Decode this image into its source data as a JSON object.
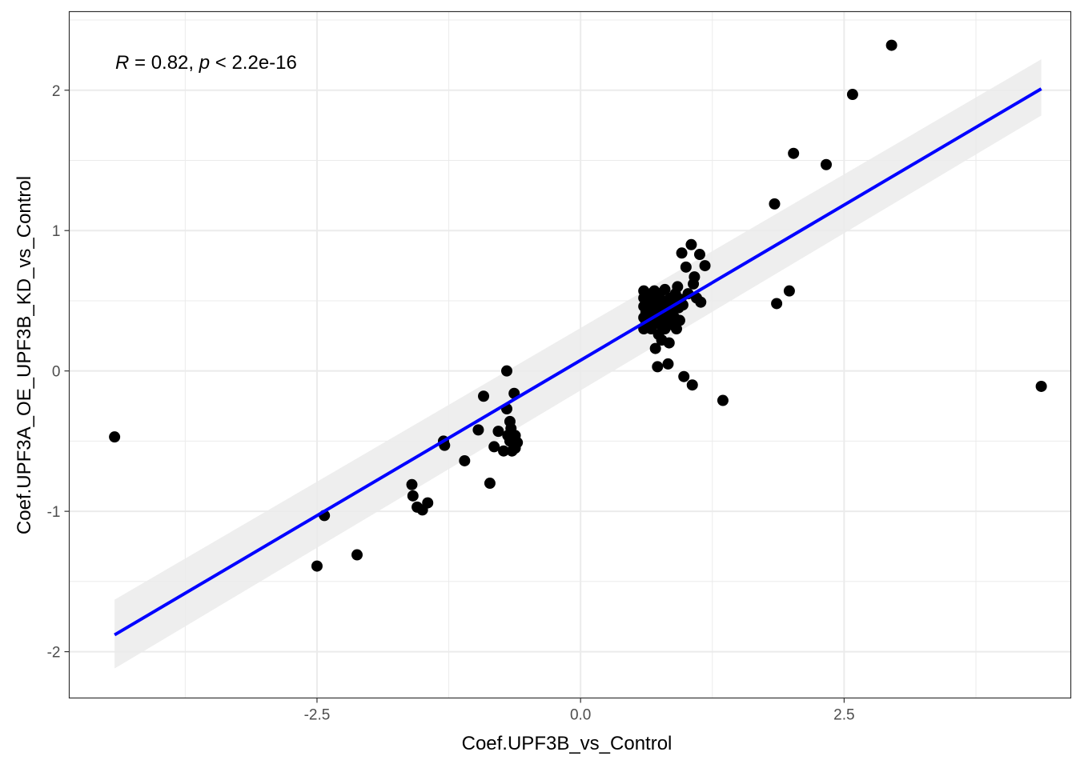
{
  "chart_data": {
    "type": "scatter",
    "title": "",
    "xlabel": "Coef.UPF3B_vs_Control",
    "ylabel": "Coef.UPF3A_OE_UPF3B_KD_vs_Control",
    "xlim": [
      -4.85,
      4.65
    ],
    "ylim": [
      -2.33,
      2.56
    ],
    "x_ticks": [
      -2.5,
      0.0,
      2.5
    ],
    "x_tick_labels": [
      "-2.5",
      "0.0",
      "2.5"
    ],
    "y_ticks": [
      -2,
      -1,
      0,
      1,
      2
    ],
    "y_tick_labels": [
      "-2",
      "-1",
      "0",
      "1",
      "2"
    ],
    "grid": true,
    "annotation": {
      "r_symbol": "R",
      "r_text": " = 0.82, ",
      "p_symbol": "p",
      "p_text": " < 2.2e-16"
    },
    "regression": {
      "x": [
        -4.42,
        4.37
      ],
      "y": [
        -1.88,
        2.01
      ],
      "ci_lower": [
        -2.12,
        1.82
      ],
      "ci_upper": [
        -1.63,
        2.22
      ],
      "color": "#0000ff",
      "band_color": "#ebebeb"
    },
    "point_color": "#000000",
    "points": [
      [
        -4.42,
        -0.47
      ],
      [
        -2.5,
        -1.39
      ],
      [
        -2.43,
        -1.03
      ],
      [
        -2.12,
        -1.31
      ],
      [
        -1.6,
        -0.81
      ],
      [
        -1.59,
        -0.89
      ],
      [
        -1.55,
        -0.97
      ],
      [
        -1.5,
        -0.99
      ],
      [
        -1.45,
        -0.94
      ],
      [
        -1.3,
        -0.5
      ],
      [
        -1.29,
        -0.53
      ],
      [
        -1.1,
        -0.64
      ],
      [
        -0.97,
        -0.42
      ],
      [
        -0.92,
        -0.18
      ],
      [
        -0.86,
        -0.8
      ],
      [
        -0.82,
        -0.54
      ],
      [
        -0.78,
        -0.43
      ],
      [
        -0.73,
        -0.57
      ],
      [
        -0.7,
        -0.27
      ],
      [
        -0.69,
        -0.46
      ],
      [
        -0.7,
        0.0
      ],
      [
        -0.67,
        -0.5
      ],
      [
        -0.67,
        -0.36
      ],
      [
        -0.66,
        -0.41
      ],
      [
        -0.65,
        -0.57
      ],
      [
        -0.63,
        -0.16
      ],
      [
        -0.62,
        -0.46
      ],
      [
        -0.62,
        -0.55
      ],
      [
        -0.66,
        -0.44
      ],
      [
        -0.6,
        -0.51
      ],
      [
        0.6,
        0.3
      ],
      [
        0.6,
        0.38
      ],
      [
        0.6,
        0.46
      ],
      [
        0.6,
        0.52
      ],
      [
        0.6,
        0.57
      ],
      [
        0.62,
        0.34
      ],
      [
        0.62,
        0.42
      ],
      [
        0.62,
        0.5
      ],
      [
        0.63,
        0.55
      ],
      [
        0.65,
        0.36
      ],
      [
        0.65,
        0.44
      ],
      [
        0.66,
        0.48
      ],
      [
        0.67,
        0.3
      ],
      [
        0.68,
        0.4
      ],
      [
        0.68,
        0.53
      ],
      [
        0.7,
        0.57
      ],
      [
        0.7,
        0.35
      ],
      [
        0.7,
        0.45
      ],
      [
        0.71,
        0.16
      ],
      [
        0.72,
        0.5
      ],
      [
        0.73,
        0.03
      ],
      [
        0.74,
        0.38
      ],
      [
        0.74,
        0.26
      ],
      [
        0.75,
        0.55
      ],
      [
        0.76,
        0.44
      ],
      [
        0.76,
        0.33
      ],
      [
        0.77,
        0.22
      ],
      [
        0.78,
        0.5
      ],
      [
        0.79,
        0.4
      ],
      [
        0.8,
        0.58
      ],
      [
        0.8,
        0.3
      ],
      [
        0.81,
        0.46
      ],
      [
        0.82,
        0.36
      ],
      [
        0.83,
        0.05
      ],
      [
        0.84,
        0.2
      ],
      [
        0.85,
        0.52
      ],
      [
        0.86,
        0.42
      ],
      [
        0.87,
        0.33
      ],
      [
        0.88,
        0.48
      ],
      [
        0.89,
        0.38
      ],
      [
        0.9,
        0.55
      ],
      [
        0.91,
        0.3
      ],
      [
        0.92,
        0.6
      ],
      [
        0.93,
        0.45
      ],
      [
        0.94,
        0.36
      ],
      [
        0.95,
        0.51
      ],
      [
        0.96,
        0.84
      ],
      [
        0.97,
        0.47
      ],
      [
        0.98,
        -0.04
      ],
      [
        1.0,
        0.74
      ],
      [
        1.02,
        0.55
      ],
      [
        1.05,
        0.9
      ],
      [
        1.06,
        -0.1
      ],
      [
        1.07,
        0.62
      ],
      [
        1.08,
        0.67
      ],
      [
        1.1,
        0.52
      ],
      [
        1.13,
        0.83
      ],
      [
        1.14,
        0.49
      ],
      [
        1.18,
        0.75
      ],
      [
        1.35,
        -0.21
      ],
      [
        1.84,
        1.19
      ],
      [
        1.86,
        0.48
      ],
      [
        1.98,
        0.57
      ],
      [
        2.02,
        1.55
      ],
      [
        2.33,
        1.47
      ],
      [
        2.58,
        1.97
      ],
      [
        2.95,
        2.32
      ],
      [
        4.37,
        -0.11
      ]
    ]
  }
}
